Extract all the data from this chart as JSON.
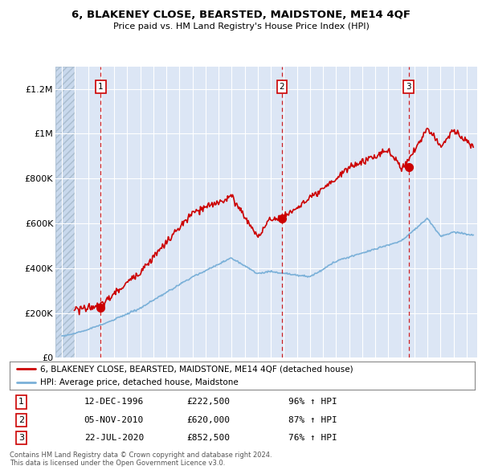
{
  "title": "6, BLAKENEY CLOSE, BEARSTED, MAIDSTONE, ME14 4QF",
  "subtitle": "Price paid vs. HM Land Registry's House Price Index (HPI)",
  "property_label": "6, BLAKENEY CLOSE, BEARSTED, MAIDSTONE, ME14 4QF (detached house)",
  "hpi_label": "HPI: Average price, detached house, Maidstone",
  "sale_dates": [
    1996.95,
    2010.85,
    2020.56
  ],
  "sale_prices": [
    222500,
    620000,
    852500
  ],
  "sale_labels": [
    "1",
    "2",
    "3"
  ],
  "sale_annotations": [
    {
      "label": "1",
      "date": "12-DEC-1996",
      "price": "£222,500",
      "pct": "96% ↑ HPI"
    },
    {
      "label": "2",
      "date": "05-NOV-2010",
      "price": "£620,000",
      "pct": "87% ↑ HPI"
    },
    {
      "label": "3",
      "date": "22-JUL-2020",
      "price": "£852,500",
      "pct": "76% ↑ HPI"
    }
  ],
  "property_color": "#cc0000",
  "hpi_color": "#7ab0d8",
  "background_color": "#dce6f5",
  "hatch_color": "#c8d8ec",
  "ylim": [
    0,
    1300000
  ],
  "yticks": [
    0,
    200000,
    400000,
    600000,
    800000,
    1000000,
    1200000
  ],
  "ytick_labels": [
    "£0",
    "£200K",
    "£400K",
    "£600K",
    "£800K",
    "£1M",
    "£1.2M"
  ],
  "xstart": 1994,
  "xend": 2025,
  "footnote": "Contains HM Land Registry data © Crown copyright and database right 2024.\nThis data is licensed under the Open Government Licence v3.0."
}
